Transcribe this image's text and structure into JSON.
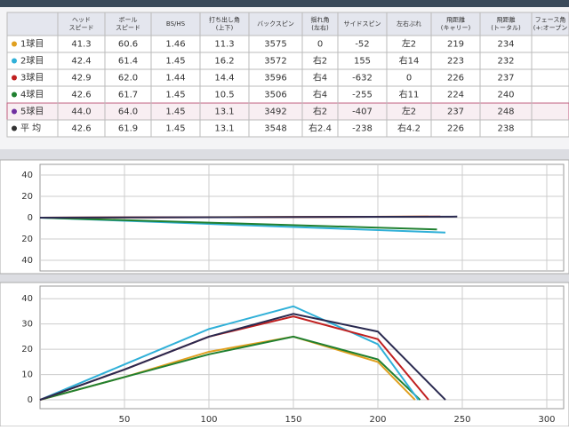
{
  "table": {
    "headers": [
      [
        "ヘッド",
        "スピード"
      ],
      [
        "ボール",
        "スピード"
      ],
      [
        "BS/HS"
      ],
      [
        "打ち出し角",
        "(上下)"
      ],
      [
        "バックスピン"
      ],
      [
        "揺れ角",
        "(左右)"
      ],
      [
        "サイドスピン"
      ],
      [
        "左右ぶれ"
      ],
      [
        "飛距離",
        "(キャリー)"
      ],
      [
        "飛距離",
        "(トータル)"
      ],
      [
        "フェース角",
        "(+:オープン"
      ]
    ],
    "rows": [
      {
        "label": "1球目",
        "color": "#e0a020",
        "cells": [
          "41.3",
          "60.6",
          "1.46",
          "11.3",
          "3575",
          "0",
          "-52",
          "左2",
          "219",
          "234",
          ""
        ]
      },
      {
        "label": "2球目",
        "color": "#30b0d8",
        "cells": [
          "42.4",
          "61.4",
          "1.45",
          "16.2",
          "3572",
          "右2",
          "155",
          "右14",
          "223",
          "232",
          ""
        ]
      },
      {
        "label": "3球目",
        "color": "#c02020",
        "cells": [
          "42.9",
          "62.0",
          "1.44",
          "14.4",
          "3596",
          "右4",
          "-632",
          "0",
          "226",
          "237",
          ""
        ]
      },
      {
        "label": "4球目",
        "color": "#208030",
        "cells": [
          "42.6",
          "61.7",
          "1.45",
          "10.5",
          "3506",
          "右4",
          "-255",
          "右11",
          "224",
          "240",
          ""
        ]
      },
      {
        "label": "5球目",
        "color": "#7030a0",
        "cells": [
          "44.0",
          "64.0",
          "1.45",
          "13.1",
          "3492",
          "右2",
          "-407",
          "左2",
          "237",
          "248",
          ""
        ]
      },
      {
        "label": "平 均",
        "color": "#333333",
        "cells": [
          "42.6",
          "61.9",
          "1.45",
          "13.1",
          "3548",
          "右2.4",
          "-238",
          "右4.2",
          "226",
          "238",
          ""
        ]
      }
    ]
  },
  "chart_data": [
    {
      "type": "line",
      "xlim": [
        0,
        310
      ],
      "xticks": [
        50,
        100,
        150,
        200,
        250,
        300
      ],
      "show_xtick_labels": false,
      "ylim": [
        -50,
        50
      ],
      "yticks": [
        40,
        20,
        0,
        {
          "value": -20,
          "label": "20"
        },
        {
          "value": -40,
          "label": "40"
        }
      ],
      "grid": true,
      "series": [
        {
          "color": "#e0a020",
          "x": [
            0,
            230
          ],
          "values": [
            0,
            1
          ]
        },
        {
          "color": "#30b0d8",
          "x": [
            0,
            240
          ],
          "values": [
            0,
            -14
          ]
        },
        {
          "color": "#208030",
          "x": [
            0,
            235
          ],
          "values": [
            0,
            -11
          ]
        },
        {
          "color": "#c02020",
          "x": [
            0,
            237
          ],
          "values": [
            0,
            1
          ]
        },
        {
          "color": "#2a2a50",
          "x": [
            0,
            247
          ],
          "values": [
            0,
            1
          ]
        }
      ]
    },
    {
      "type": "line",
      "xlim": [
        0,
        310
      ],
      "xticks": [
        50,
        100,
        150,
        200,
        250,
        300
      ],
      "show_xtick_labels": true,
      "ylim": [
        -3.5,
        45
      ],
      "yticks": [
        0,
        10,
        20,
        30,
        40
      ],
      "grid": true,
      "series": [
        {
          "color": "#e0a020",
          "x": [
            0,
            50,
            100,
            150,
            200,
            222
          ],
          "values": [
            0,
            9,
            19,
            25,
            15,
            0
          ]
        },
        {
          "color": "#208030",
          "x": [
            0,
            50,
            100,
            150,
            200,
            225
          ],
          "values": [
            0,
            9,
            18,
            25,
            16,
            0
          ]
        },
        {
          "color": "#30b0d8",
          "x": [
            0,
            50,
            100,
            150,
            200,
            224
          ],
          "values": [
            0,
            14,
            28,
            37,
            22,
            0
          ]
        },
        {
          "color": "#c02020",
          "x": [
            0,
            50,
            100,
            150,
            200,
            230
          ],
          "values": [
            0,
            12,
            25,
            33,
            24,
            0
          ]
        },
        {
          "color": "#2a2a50",
          "x": [
            0,
            50,
            100,
            150,
            200,
            240
          ],
          "values": [
            0,
            12,
            25,
            34,
            27,
            0
          ]
        }
      ]
    }
  ]
}
